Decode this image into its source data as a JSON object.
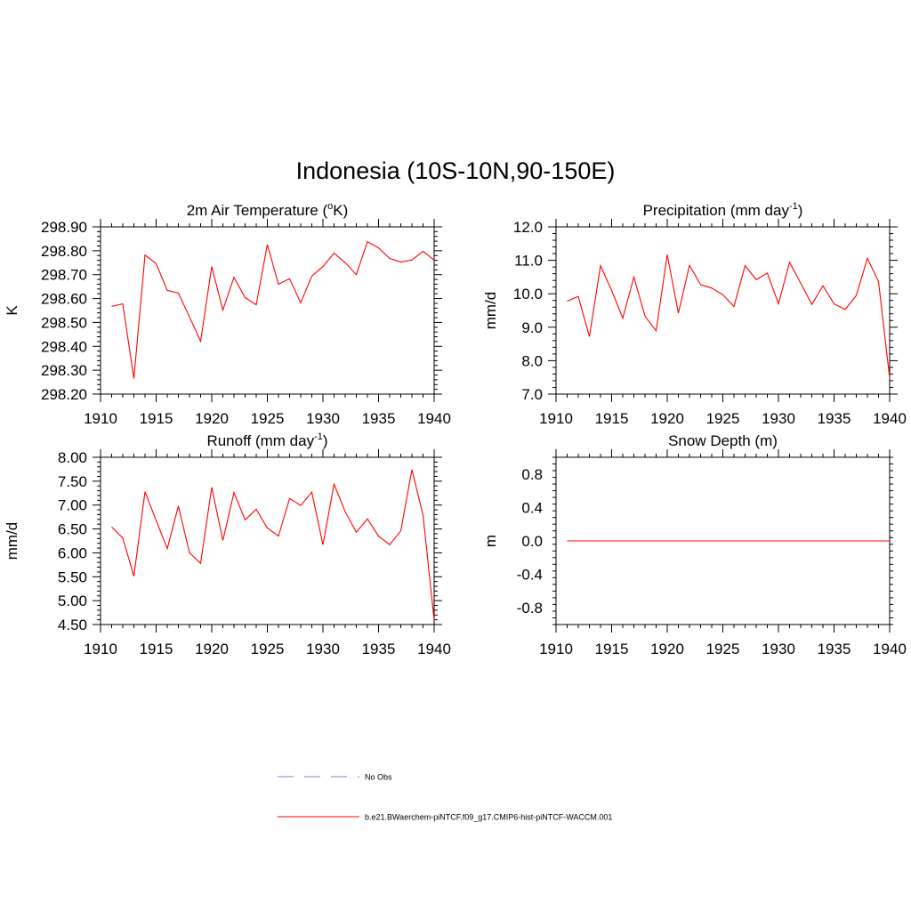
{
  "main_title": "Indonesia (10S-10N,90-150E)",
  "legend": {
    "entries": [
      {
        "label": "No Obs",
        "color": "#9999dd",
        "dash": true
      },
      {
        "label": "b.e21.BWaerchem-piNTCF.f09_g17.CMIP6-hist-piNTCF-WACCM.001",
        "color": "#ff0000",
        "dash": false
      }
    ]
  },
  "chart_data": [
    {
      "type": "line",
      "title": "2m Air Temperature (°K)",
      "title_parts": {
        "pre": "2m Air Temperature (",
        "sup": "o",
        "post": "K)"
      },
      "ylabel": "K",
      "xlim": [
        1910,
        1940
      ],
      "ylim": [
        298.2,
        298.9
      ],
      "xticks": [
        1910,
        1915,
        1920,
        1925,
        1930,
        1935,
        1940
      ],
      "yticks": [
        "298.20",
        "298.30",
        "298.40",
        "298.50",
        "298.60",
        "298.70",
        "298.80",
        "298.90"
      ],
      "series": [
        {
          "color": "#ff0000",
          "x": [
            1911,
            1912,
            1913,
            1914,
            1915,
            1916,
            1917,
            1918,
            1919,
            1920,
            1921,
            1922,
            1923,
            1924,
            1925,
            1926,
            1927,
            1928,
            1929,
            1930,
            1931,
            1932,
            1933,
            1934,
            1935,
            1936,
            1937,
            1938,
            1939,
            1940
          ],
          "y": [
            298.567,
            298.578,
            298.265,
            298.782,
            298.746,
            298.634,
            298.623,
            298.523,
            298.421,
            298.734,
            298.552,
            298.689,
            298.604,
            298.574,
            298.826,
            298.66,
            298.683,
            298.582,
            298.694,
            298.734,
            298.79,
            298.75,
            298.7,
            298.838,
            298.812,
            298.768,
            298.753,
            298.761,
            298.798,
            298.761
          ]
        }
      ]
    },
    {
      "type": "line",
      "title": "Precipitation (mm day-1)",
      "title_parts": {
        "pre": "Precipitation (mm day",
        "sup": "-1",
        "post": ")"
      },
      "ylabel": "mm/d",
      "xlim": [
        1910,
        1940
      ],
      "ylim": [
        7.0,
        12.0
      ],
      "xticks": [
        1910,
        1915,
        1920,
        1925,
        1930,
        1935,
        1940
      ],
      "yticks": [
        "7.0",
        "8.0",
        "9.0",
        "10.0",
        "11.0",
        "12.0"
      ],
      "series": [
        {
          "color": "#ff0000",
          "x": [
            1911,
            1912,
            1913,
            1914,
            1915,
            1916,
            1917,
            1918,
            1919,
            1920,
            1921,
            1922,
            1923,
            1924,
            1925,
            1926,
            1927,
            1928,
            1929,
            1930,
            1931,
            1932,
            1933,
            1934,
            1935,
            1936,
            1937,
            1938,
            1939,
            1940
          ],
          "y": [
            9.78,
            9.92,
            8.72,
            10.84,
            10.1,
            9.27,
            10.5,
            9.33,
            8.89,
            11.17,
            9.42,
            10.85,
            10.27,
            10.17,
            9.97,
            9.62,
            10.84,
            10.42,
            10.62,
            9.7,
            10.94,
            10.32,
            9.68,
            10.24,
            9.7,
            9.53,
            9.95,
            11.06,
            10.36,
            7.48
          ]
        }
      ]
    },
    {
      "type": "line",
      "title": "Runoff (mm day-1)",
      "title_parts": {
        "pre": "Runoff (mm day",
        "sup": "-1",
        "post": ")"
      },
      "ylabel": "mm/d",
      "xlim": [
        1910,
        1940
      ],
      "ylim": [
        4.5,
        8.0
      ],
      "xticks": [
        1910,
        1915,
        1920,
        1925,
        1930,
        1935,
        1940
      ],
      "yticks": [
        "4.50",
        "5.00",
        "5.50",
        "6.00",
        "6.50",
        "7.00",
        "7.50",
        "8.00"
      ],
      "series": [
        {
          "color": "#ff0000",
          "x": [
            1911,
            1912,
            1913,
            1914,
            1915,
            1916,
            1917,
            1918,
            1919,
            1920,
            1921,
            1922,
            1923,
            1924,
            1925,
            1926,
            1927,
            1928,
            1929,
            1930,
            1931,
            1932,
            1933,
            1934,
            1935,
            1936,
            1937,
            1938,
            1939,
            1940
          ],
          "y": [
            6.54,
            6.31,
            5.51,
            7.28,
            6.68,
            6.09,
            6.98,
            6.0,
            5.78,
            7.37,
            6.26,
            7.26,
            6.69,
            6.91,
            6.52,
            6.35,
            7.14,
            6.99,
            7.27,
            6.17,
            7.44,
            6.86,
            6.43,
            6.71,
            6.35,
            6.17,
            6.46,
            7.74,
            6.79,
            4.59
          ]
        }
      ]
    },
    {
      "type": "line",
      "title": "Snow Depth (m)",
      "title_parts": {
        "pre": "Snow Depth (m)",
        "sup": "",
        "post": ""
      },
      "ylabel": "m",
      "xlim": [
        1910,
        1940
      ],
      "ylim": [
        -1.0,
        1.0
      ],
      "xticks": [
        1910,
        1915,
        1920,
        1925,
        1930,
        1935,
        1940
      ],
      "yticks": [
        "-0.8",
        "-0.4",
        "0.0",
        "0.4",
        "0.8"
      ],
      "series": [
        {
          "color": "#ff0000",
          "x": [
            1911,
            1912,
            1913,
            1914,
            1915,
            1916,
            1917,
            1918,
            1919,
            1920,
            1921,
            1922,
            1923,
            1924,
            1925,
            1926,
            1927,
            1928,
            1929,
            1930,
            1931,
            1932,
            1933,
            1934,
            1935,
            1936,
            1937,
            1938,
            1939,
            1940
          ],
          "y": [
            0,
            0,
            0,
            0,
            0,
            0,
            0,
            0,
            0,
            0,
            0,
            0,
            0,
            0,
            0,
            0,
            0,
            0,
            0,
            0,
            0,
            0,
            0,
            0,
            0,
            0,
            0,
            0,
            0,
            0
          ]
        }
      ]
    }
  ]
}
